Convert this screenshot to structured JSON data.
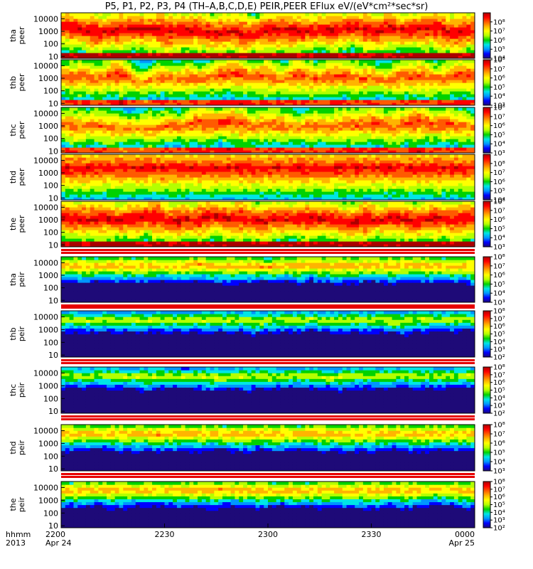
{
  "title": "P5, P1, P2, P3, P4 (TH–A,B,C,D,E) PEIR,PEER EFlux eV/(eV*cm²*sec*sr)",
  "axis": {
    "row_label_1": "hhmm",
    "row_label_2": "2013"
  },
  "x_ticks": [
    {
      "time": "2200",
      "date": "Apr 24"
    },
    {
      "time": "2230",
      "date": ""
    },
    {
      "time": "2300",
      "date": ""
    },
    {
      "time": "2330",
      "date": ""
    },
    {
      "time": "0000",
      "date": "Apr 25"
    }
  ],
  "y_ticks": [
    "10",
    "100",
    "1000",
    "10000"
  ],
  "colors": {
    "map": [
      "#1e0a78",
      "#0000ff",
      "#0096ff",
      "#00e6e6",
      "#00d200",
      "#b4ff00",
      "#ffff00",
      "#ffb400",
      "#ff5a00",
      "#ff0000",
      "#aa0000"
    ],
    "spacer": "#e60000"
  },
  "chart_data": {
    "type": "heatmap",
    "title": "P5, P1, P2, P3, P4 (TH–A,B,C,D,E) PEIR,PEER EFlux eV/(eV*cm²*sec*sr)",
    "x_range": [
      "2013-04-24 22:00",
      "2013-04-25 00:00"
    ],
    "y_scale": "log",
    "panels": [
      {
        "probe": "tha",
        "species": "peer",
        "ylim": [
          7,
          30000
        ],
        "cbar_ticks": [
          "10⁴",
          "10⁵",
          "10⁶",
          "10⁷",
          "10⁸"
        ],
        "cbar_range": [
          1000,
          100000000
        ]
      },
      {
        "probe": "thb",
        "species": "peer",
        "ylim": [
          7,
          30000
        ],
        "cbar_ticks": [
          "10³",
          "10⁴",
          "10⁵",
          "10⁶",
          "10⁷",
          "10⁸"
        ],
        "cbar_range": [
          1000,
          100000000
        ]
      },
      {
        "probe": "thc",
        "species": "peer",
        "ylim": [
          7,
          30000
        ],
        "cbar_ticks": [
          "10³",
          "10⁴",
          "10⁵",
          "10⁶",
          "10⁷",
          "10⁸"
        ],
        "cbar_range": [
          1000,
          100000000
        ]
      },
      {
        "probe": "thd",
        "species": "peer",
        "ylim": [
          7,
          30000
        ],
        "cbar_ticks": [
          "10⁴",
          "10⁵",
          "10⁶",
          "10⁷",
          "10⁸"
        ],
        "cbar_range": [
          1000,
          100000000
        ]
      },
      {
        "probe": "the",
        "species": "peer",
        "ylim": [
          7,
          30000
        ],
        "cbar_ticks": [
          "10³",
          "10⁴",
          "10⁵",
          "10⁶",
          "10⁷",
          "10⁸"
        ],
        "cbar_range": [
          1000,
          100000000
        ]
      },
      {
        "probe": "tha",
        "species": "peir",
        "ylim": [
          7,
          30000
        ],
        "cbar_ticks": [
          "10³",
          "10⁴",
          "10⁵",
          "10⁶",
          "10⁷",
          "10⁸"
        ],
        "cbar_range": [
          1000,
          100000000
        ]
      },
      {
        "probe": "thb",
        "species": "peir",
        "ylim": [
          7,
          30000
        ],
        "cbar_ticks": [
          "10²",
          "10³",
          "10⁴",
          "10⁵",
          "10⁶",
          "10⁷",
          "10⁸"
        ],
        "cbar_range": [
          100,
          100000000
        ]
      },
      {
        "probe": "thc",
        "species": "peir",
        "ylim": [
          7,
          30000
        ],
        "cbar_ticks": [
          "10²",
          "10³",
          "10⁴",
          "10⁵",
          "10⁶",
          "10⁷",
          "10⁸"
        ],
        "cbar_range": [
          100,
          100000000
        ]
      },
      {
        "probe": "thd",
        "species": "peir",
        "ylim": [
          7,
          30000
        ],
        "cbar_ticks": [
          "10³",
          "10⁴",
          "10⁵",
          "10⁶",
          "10⁷",
          "10⁸"
        ],
        "cbar_range": [
          1000,
          100000000
        ]
      },
      {
        "probe": "the",
        "species": "peir",
        "ylim": [
          7,
          30000
        ],
        "cbar_ticks": [
          "10²",
          "10³",
          "10⁴",
          "10⁵",
          "10⁶",
          "10⁷",
          "10⁸"
        ],
        "cbar_range": [
          100,
          100000000
        ]
      }
    ]
  }
}
